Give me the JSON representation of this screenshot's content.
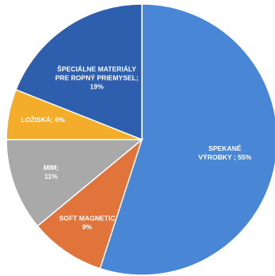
{
  "chart_data": {
    "type": "pie",
    "title": "",
    "legend": "none",
    "slices": [
      {
        "name": "SPEKANÉ VÝROBKY",
        "value": 55,
        "label_lines": [
          "SPEKANÉ",
          "VÝROBKY ; 55%"
        ],
        "color": "#4a86d6"
      },
      {
        "name": "SOFT MAGNETIC",
        "value": 9,
        "label_lines": [
          "SOFT MAGNETIC",
          "9%"
        ],
        "color": "#e0743a"
      },
      {
        "name": "MIM",
        "value": 11,
        "label_lines": [
          "MIM;",
          "11%"
        ],
        "color": "#a9a9a9"
      },
      {
        "name": "LOŽISKÁ",
        "value": 6,
        "label_lines": [
          "LOŽISKÁ; 6%"
        ],
        "color": "#f4ad2a"
      },
      {
        "name": "ŠPECIÁLNE MATERIÁLY PRE ROPNÝ PRIEMYSEL",
        "value": 19,
        "label_lines": [
          "ŠPECIÁLNE MATERIÁLY",
          "PRE ROPNÝ PRIEMYSEL;",
          "19%"
        ],
        "color": "#2d5fae"
      }
    ]
  }
}
